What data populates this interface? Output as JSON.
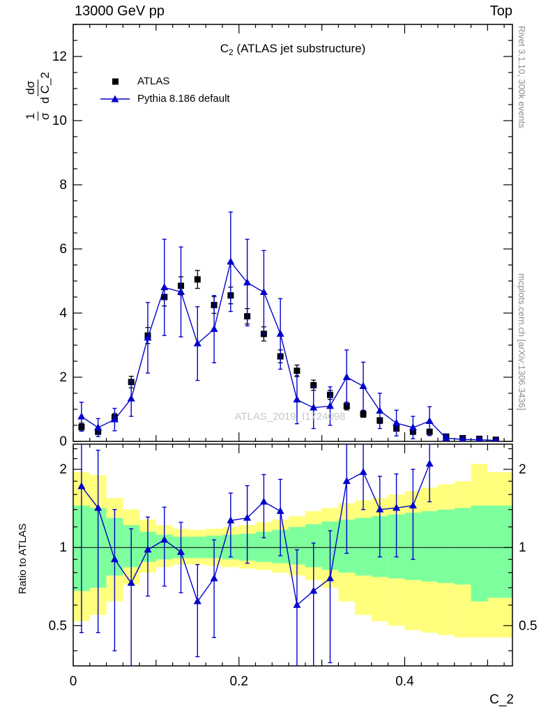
{
  "header": {
    "left": "13000 GeV pp",
    "right": "Top"
  },
  "title": {
    "prefix": "C",
    "sub": "2",
    "suffix": " (ATLAS jet substructure)"
  },
  "legend": [
    {
      "label": "ATLAS",
      "marker": "square"
    },
    {
      "label": "Pythia 8.186 default",
      "marker": "triangle-line"
    }
  ],
  "labels": {
    "ylabel_main": {
      "f1_num": "1",
      "f1_den": "σ",
      "f2_num": "dσ",
      "f2_den": "d C_2"
    },
    "ylabel_ratio": "Ratio to ATLAS",
    "xlabel": "C_2",
    "watermark": "ATLAS_2019_I1724098",
    "rivet": "Rivet 3.1.10,  300k events",
    "mcplots": "mcplots.cern.ch [arXiv:1306.3436]"
  },
  "colors": {
    "pythia_blue": "#0000cc",
    "atlas_black": "#000000",
    "band_yellow": "#ffff7d",
    "band_green": "#7dff9e",
    "watermark_gray": "#c8c8c8",
    "margin_text_gray": "#8c8c8c"
  },
  "chart_data": [
    {
      "panel": "main",
      "type": "scatter",
      "title": "C_2 (ATLAS jet substructure)",
      "xlabel": "C_2",
      "ylabel": "1/sigma dsigma/d C_2",
      "xlim": [
        0,
        0.53
      ],
      "ylim": [
        0,
        13
      ],
      "bin_half_width": 0.01,
      "xticks": {
        "major": [
          0,
          0.2,
          0.4
        ],
        "labels": [
          "0",
          "0.2",
          "0.4"
        ],
        "minor_step": 0.02
      },
      "yticks": {
        "major": [
          0,
          2,
          4,
          6,
          8,
          10,
          12
        ],
        "labels": [
          "0",
          "2",
          "4",
          "6",
          "8",
          "10",
          "12"
        ],
        "minor_step": 0.5
      },
      "x": [
        0.01,
        0.03,
        0.05,
        0.07,
        0.09,
        0.11,
        0.13,
        0.15,
        0.17,
        0.19,
        0.21,
        0.23,
        0.25,
        0.27,
        0.29,
        0.31,
        0.33,
        0.35,
        0.37,
        0.39,
        0.41,
        0.43,
        0.45,
        0.47,
        0.49,
        0.51
      ],
      "series": [
        {
          "name": "ATLAS",
          "marker": "square",
          "values": [
            0.45,
            0.3,
            0.75,
            1.85,
            3.3,
            4.5,
            4.85,
            5.05,
            4.25,
            4.55,
            3.9,
            3.35,
            2.65,
            2.2,
            1.75,
            1.45,
            1.1,
            0.85,
            0.65,
            0.4,
            0.3,
            0.3,
            0.15,
            0.1,
            0.08,
            0.05
          ],
          "errors": [
            0.12,
            0.08,
            0.12,
            0.18,
            0.25,
            0.28,
            0.28,
            0.28,
            0.26,
            0.26,
            0.24,
            0.22,
            0.2,
            0.18,
            0.16,
            0.14,
            0.12,
            0.1,
            0.09,
            0.07,
            0.06,
            0.06,
            0.04,
            0.03,
            0.03,
            0.02
          ]
        },
        {
          "name": "Pythia 8.186 default",
          "marker": "triangle",
          "line": true,
          "values": [
            0.77,
            0.43,
            0.68,
            1.33,
            3.23,
            4.8,
            4.66,
            3.05,
            3.5,
            5.6,
            4.95,
            4.65,
            3.35,
            1.3,
            1.05,
            1.1,
            2.0,
            1.72,
            0.95,
            0.57,
            0.43,
            0.63,
            0.1,
            0.06,
            0.05,
            0.03
          ],
          "errors": [
            0.45,
            0.28,
            0.35,
            0.55,
            1.1,
            1.5,
            1.4,
            1.15,
            1.05,
            1.55,
            1.35,
            1.3,
            1.1,
            0.75,
            0.65,
            0.6,
            0.85,
            0.75,
            0.55,
            0.4,
            0.35,
            0.45,
            0.12,
            0.08,
            0.06,
            0.04
          ]
        }
      ]
    },
    {
      "panel": "ratio",
      "type": "ratio",
      "ylabel": "Ratio to ATLAS",
      "yscale": "log",
      "ylim": [
        0.35,
        2.5
      ],
      "reference_line": 1,
      "yticks": {
        "major": [
          0.5,
          1,
          2
        ],
        "labels": [
          "0.5",
          "1",
          "2"
        ],
        "minor": [
          0.4,
          0.6,
          0.7,
          0.8,
          0.9,
          1.2,
          1.4,
          1.6,
          1.8,
          2.2,
          2.4
        ]
      },
      "x": [
        0.01,
        0.03,
        0.05,
        0.07,
        0.09,
        0.11,
        0.13,
        0.15,
        0.17,
        0.19,
        0.21,
        0.23,
        0.25,
        0.27,
        0.29,
        0.31,
        0.33,
        0.35,
        0.37,
        0.39,
        0.41,
        0.43
      ],
      "values": [
        1.72,
        1.42,
        0.9,
        0.73,
        0.98,
        1.07,
        0.96,
        0.62,
        0.76,
        1.27,
        1.3,
        1.5,
        1.38,
        0.6,
        0.68,
        0.76,
        1.8,
        1.95,
        1.4,
        1.42,
        1.45,
        2.1
      ],
      "errors": [
        1.25,
        0.95,
        0.5,
        0.45,
        0.33,
        0.36,
        0.29,
        0.24,
        0.31,
        0.35,
        0.43,
        0.41,
        0.45,
        0.38,
        0.36,
        0.4,
        0.85,
        0.55,
        0.48,
        0.5,
        0.55,
        0.6
      ],
      "bands": {
        "x": [
          0.01,
          0.03,
          0.05,
          0.07,
          0.09,
          0.11,
          0.13,
          0.15,
          0.17,
          0.19,
          0.21,
          0.23,
          0.25,
          0.27,
          0.29,
          0.31,
          0.33,
          0.35,
          0.37,
          0.39,
          0.41,
          0.43,
          0.45,
          0.47,
          0.49,
          0.51
        ],
        "yellow_lo": [
          0.52,
          0.55,
          0.62,
          0.72,
          0.8,
          0.84,
          0.86,
          0.86,
          0.85,
          0.84,
          0.83,
          0.82,
          0.8,
          0.78,
          0.75,
          0.7,
          0.62,
          0.55,
          0.52,
          0.5,
          0.48,
          0.47,
          0.46,
          0.45,
          0.45,
          0.45
        ],
        "yellow_hi": [
          1.95,
          1.9,
          1.55,
          1.4,
          1.28,
          1.22,
          1.18,
          1.17,
          1.18,
          1.2,
          1.22,
          1.25,
          1.28,
          1.32,
          1.38,
          1.42,
          1.48,
          1.52,
          1.55,
          1.6,
          1.65,
          1.7,
          1.75,
          1.8,
          2.1,
          1.95
        ],
        "green_lo": [
          0.68,
          0.7,
          0.78,
          0.84,
          0.88,
          0.9,
          0.91,
          0.91,
          0.91,
          0.9,
          0.89,
          0.88,
          0.87,
          0.86,
          0.84,
          0.82,
          0.8,
          0.78,
          0.77,
          0.76,
          0.75,
          0.74,
          0.73,
          0.72,
          0.62,
          0.64
        ],
        "green_hi": [
          1.45,
          1.42,
          1.3,
          1.22,
          1.15,
          1.12,
          1.1,
          1.1,
          1.11,
          1.12,
          1.13,
          1.15,
          1.17,
          1.2,
          1.23,
          1.26,
          1.28,
          1.3,
          1.32,
          1.34,
          1.36,
          1.38,
          1.4,
          1.42,
          1.45,
          1.45
        ]
      }
    }
  ]
}
